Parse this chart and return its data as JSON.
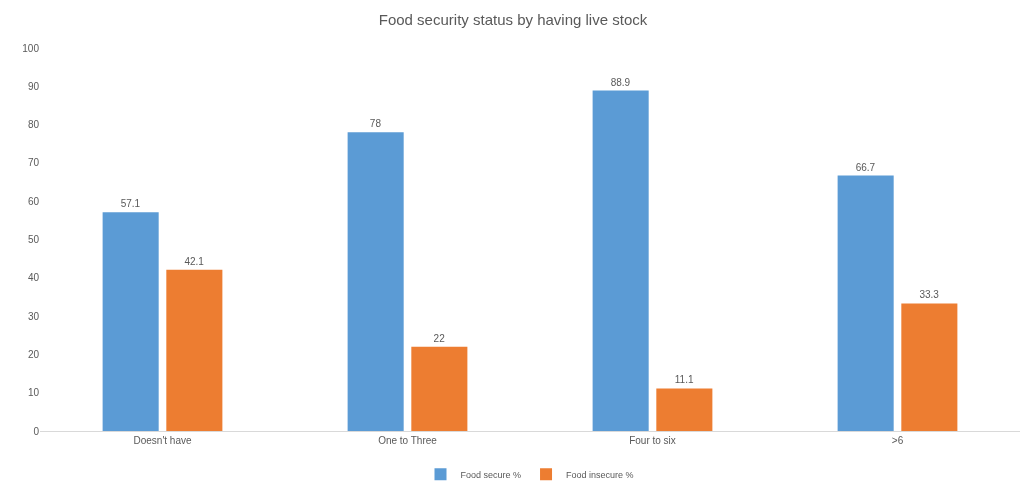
{
  "chart_data": {
    "type": "bar",
    "title": "Food security status by having live stock",
    "categories": [
      "Doesn't have",
      "One to Three",
      "Four to six",
      ">6"
    ],
    "series": [
      {
        "name": "Food secure %",
        "color": "#5b9bd5",
        "values": [
          57.1,
          78,
          88.9,
          66.7
        ]
      },
      {
        "name": "Food insecure %",
        "color": "#ed7d31",
        "values": [
          42.1,
          22,
          11.1,
          33.3
        ]
      }
    ],
    "ylim": [
      0,
      100
    ],
    "yticks": [
      0,
      10,
      20,
      30,
      40,
      50,
      60,
      70,
      80,
      90,
      100
    ],
    "data_labels": true,
    "legend": "bottom"
  }
}
